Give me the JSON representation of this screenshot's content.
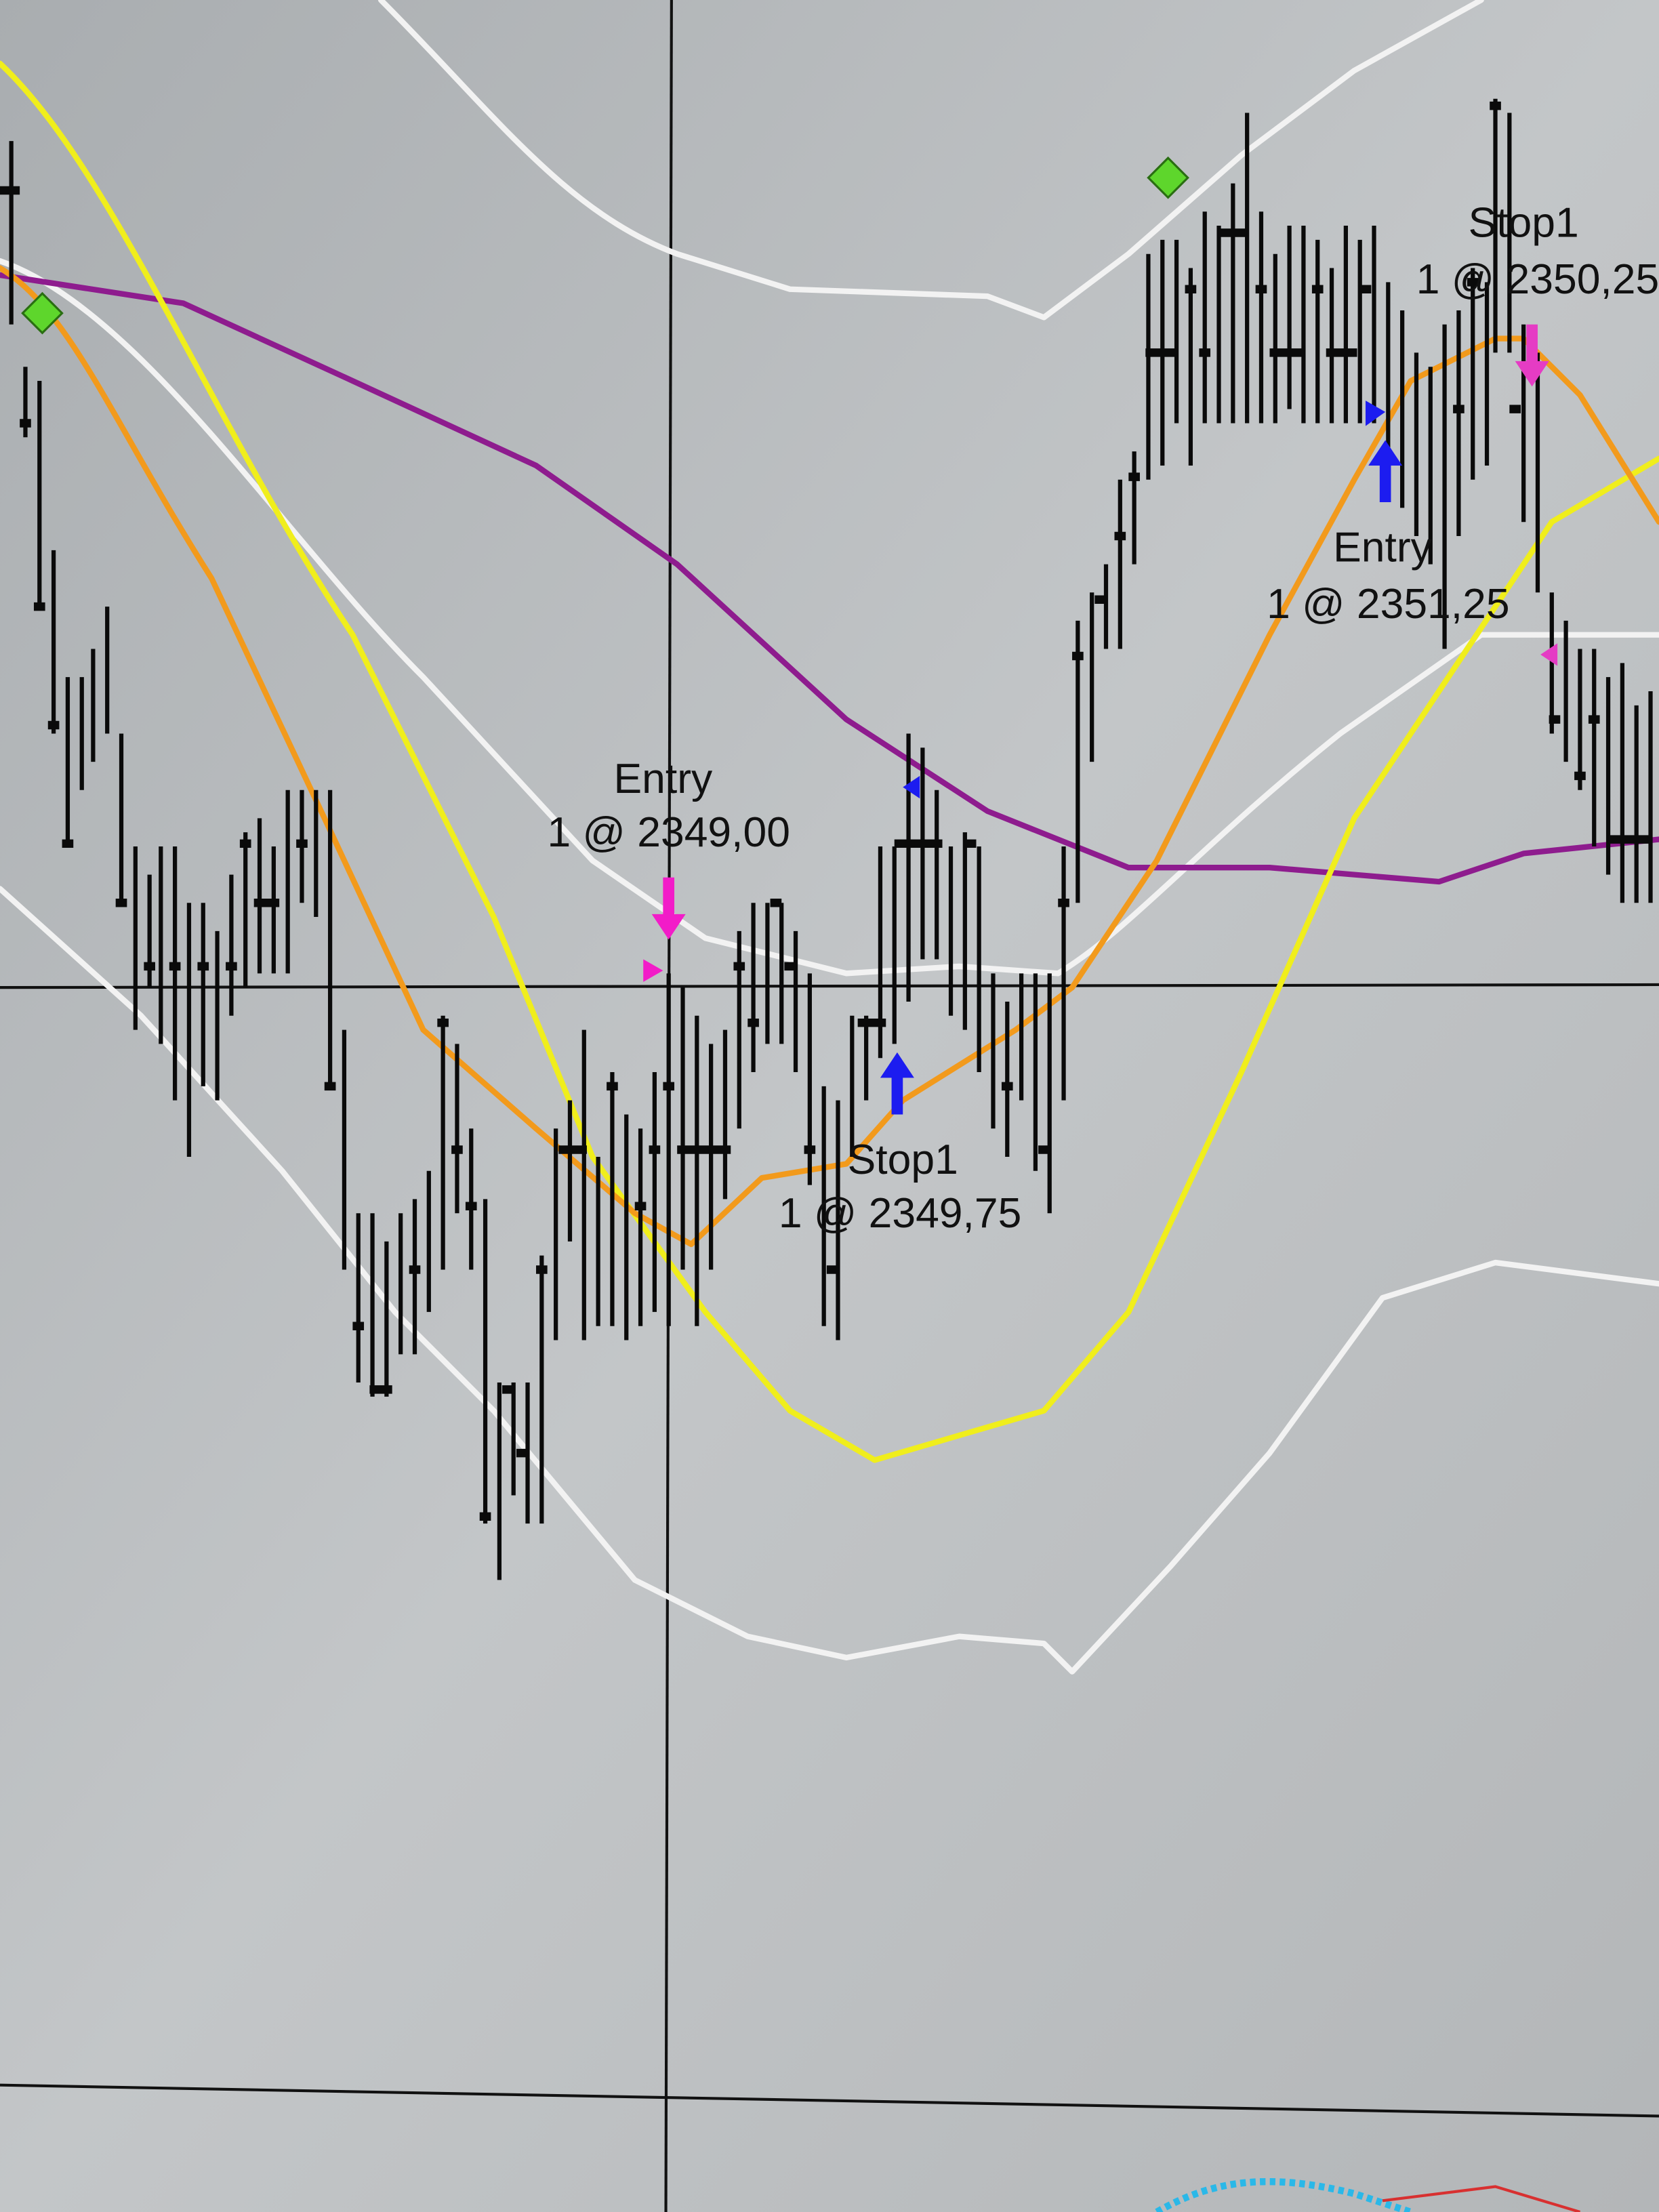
{
  "annotations": [
    {
      "label": "Entry",
      "detail": "1 @ 2349,00"
    },
    {
      "label": "Stop1",
      "detail": "1 @ 2349,75"
    },
    {
      "label": "Entry",
      "detail": "1 @ 2351,25"
    },
    {
      "label": "Stop1",
      "detail": "1 @ 2350,25"
    }
  ]
}
